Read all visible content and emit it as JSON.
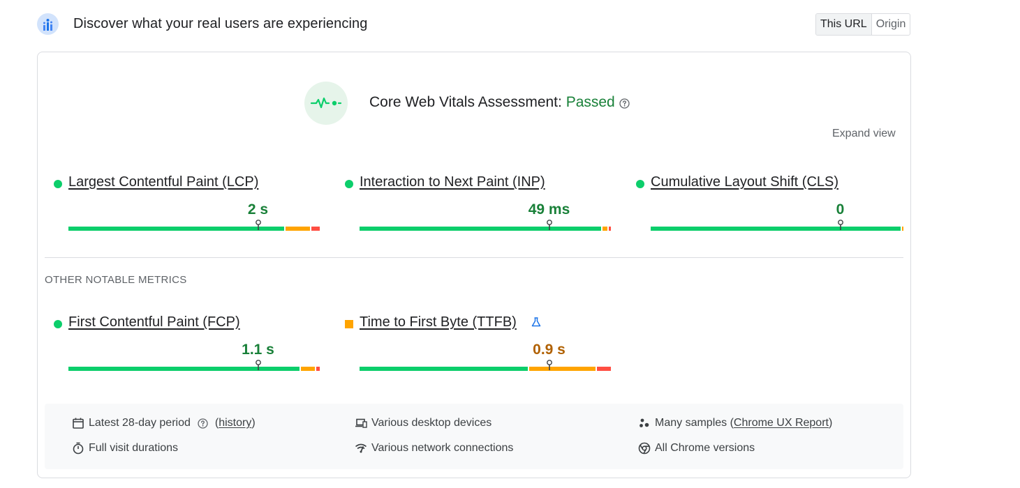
{
  "header": {
    "title": "Discover what your real users are experiencing",
    "toggle": {
      "this_url": "This URL",
      "origin": "Origin",
      "selected": "This URL"
    }
  },
  "assessment": {
    "prefix": "Core Web Vitals Assessment: ",
    "status": "Passed",
    "expand_label": "Expand view"
  },
  "core_metrics": [
    {
      "name": "Largest Contentful Paint (LCP)",
      "value": "2 s",
      "rating": "good",
      "dot_color": "#0cce6b",
      "distribution": {
        "good": 0.86,
        "needs_improvement": 0.1,
        "poor": 0.04
      },
      "marker": 0.75
    },
    {
      "name": "Interaction to Next Paint (INP)",
      "value": "49 ms",
      "rating": "good",
      "dot_color": "#0cce6b",
      "distribution": {
        "good": 0.962,
        "needs_improvement": 0.023,
        "poor": 0.015
      },
      "marker": 0.75
    },
    {
      "name": "Cumulative Layout Shift (CLS)",
      "value": "0",
      "rating": "good",
      "dot_color": "#0cce6b",
      "distribution": {
        "good": 0.995,
        "needs_improvement": 0.005,
        "poor": 0.0
      },
      "marker": 0.75
    }
  ],
  "other_title": "OTHER NOTABLE METRICS",
  "other_metrics": [
    {
      "name": "First Contentful Paint (FCP)",
      "value": "1.1 s",
      "rating": "good",
      "dot_color": "#0cce6b",
      "distribution": {
        "good": 0.92,
        "needs_improvement": 0.06,
        "poor": 0.02
      },
      "marker": 0.75
    },
    {
      "name": "Time to First Byte (TTFB)",
      "value": "0.9 s",
      "rating": "needs_improvement",
      "dot_color": "#ffa400",
      "experimental_icon": "flask-icon",
      "distribution": {
        "good": 0.67,
        "needs_improvement": 0.27,
        "poor": 0.06
      },
      "marker": 0.75
    }
  ],
  "footer": {
    "period": "Latest 28-day period",
    "history_open": "(",
    "history_link": "history",
    "history_close": ")",
    "visit": "Full visit durations",
    "devices": "Various desktop devices",
    "network": "Various network connections",
    "samples_prefix": "Many samples (",
    "samples_link": "Chrome UX Report",
    "samples_suffix": ")",
    "versions": "All Chrome versions"
  },
  "colors": {
    "good": "#0cce6b",
    "needs_improvement": "#ffa400",
    "poor": "#ff4e42",
    "good_text": "#188038",
    "ni_text": "#b06000"
  }
}
